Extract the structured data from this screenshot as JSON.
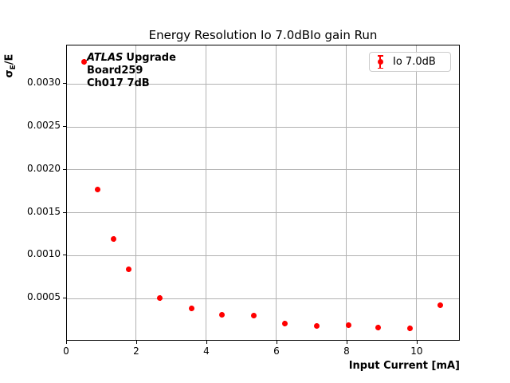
{
  "chart_data": {
    "type": "scatter",
    "title": "Energy Resolution Io 7.0dBIo gain Run",
    "xlabel": "Input Current [mA]",
    "ylabel": "σE/E",
    "ylabel_parts": {
      "sigma": "σ",
      "sub": "E",
      "rest": "/E"
    },
    "legend": {
      "label": "Io 7.0dB",
      "position": "upper right",
      "marker": "errorbar-circle"
    },
    "series": [
      {
        "name": "Io 7.0dB",
        "color": "#ff0000",
        "marker": "circle",
        "x": [
          0.52,
          0.9,
          1.36,
          1.78,
          2.68,
          3.57,
          4.45,
          5.35,
          6.23,
          7.15,
          8.05,
          8.91,
          9.8,
          10.68
        ],
        "y": [
          0.00325,
          0.00176,
          0.00119,
          0.00083,
          0.0005,
          0.00038,
          0.0003,
          0.00029,
          0.000203,
          0.000171,
          0.000179,
          0.000156,
          0.000147,
          0.000412
        ]
      }
    ],
    "xlim": [
      0,
      11.23
    ],
    "ylim": [
      0,
      0.003451
    ],
    "xticks": {
      "values": [
        0,
        2,
        4,
        6,
        8,
        10
      ],
      "labels": [
        "0",
        "2",
        "4",
        "6",
        "8",
        "10"
      ]
    },
    "yticks": {
      "values": [
        0.0005,
        0.001,
        0.0015,
        0.002,
        0.0025,
        0.003
      ],
      "labels": [
        "0.0005",
        "0.0010",
        "0.0015",
        "0.0020",
        "0.0025",
        "0.0030"
      ]
    },
    "grid": true,
    "grid_color": "#b2b2b2",
    "annotation": {
      "line1_italic": "ATLAS",
      "line1_bold": "Upgrade",
      "line2": "Board259",
      "line3": "Ch017 7dB"
    }
  }
}
